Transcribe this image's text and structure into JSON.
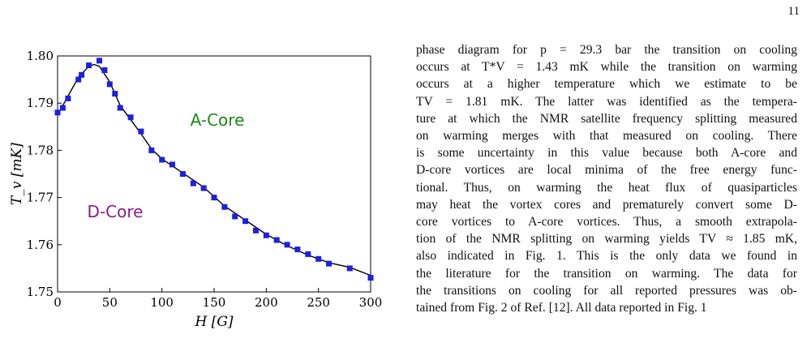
{
  "page": {
    "number": "11"
  },
  "chart_data": {
    "type": "line",
    "title": "",
    "xlabel": "H [G]",
    "ylabel": "T_v [mK]",
    "xlim": [
      0,
      300
    ],
    "ylim": [
      1.75,
      1.8
    ],
    "xticks": [
      "0",
      "50",
      "100",
      "150",
      "200",
      "250",
      "300"
    ],
    "yticks": [
      "1.75",
      "1.76",
      "1.77",
      "1.78",
      "1.79",
      "1.80"
    ],
    "grid": false,
    "annotations": [
      {
        "text": "A-Core",
        "color": "#1a8a1a"
      },
      {
        "text": "D-Core",
        "color": "#8b1a8b"
      }
    ],
    "series": [
      {
        "marker": "square",
        "color": "#1f1fe0",
        "x": [
          0,
          5,
          10,
          20,
          23,
          30,
          40,
          45,
          50,
          55,
          60,
          70,
          80,
          90,
          100,
          110,
          120,
          130,
          140,
          150,
          160,
          170,
          180,
          190,
          200,
          210,
          220,
          230,
          240,
          250,
          260,
          280,
          300
        ],
        "y": [
          1.788,
          1.789,
          1.791,
          1.795,
          1.796,
          1.798,
          1.799,
          1.797,
          1.794,
          1.792,
          1.789,
          1.787,
          1.784,
          1.78,
          1.778,
          1.777,
          1.775,
          1.773,
          1.772,
          1.77,
          1.768,
          1.766,
          1.765,
          1.763,
          1.762,
          1.761,
          1.76,
          1.759,
          1.758,
          1.757,
          1.756,
          1.755,
          1.753
        ]
      },
      {
        "marker": "none",
        "color": "#000000",
        "x": [
          0,
          10,
          20,
          30,
          35,
          40,
          50,
          60,
          70,
          80,
          90,
          100,
          120,
          140,
          160,
          180,
          200,
          220,
          240,
          260,
          280,
          300
        ],
        "y": [
          1.7875,
          1.7915,
          1.7955,
          1.7978,
          1.7982,
          1.7978,
          1.7945,
          1.7895,
          1.7865,
          1.7835,
          1.7803,
          1.7782,
          1.7752,
          1.7722,
          1.7682,
          1.7652,
          1.7622,
          1.7598,
          1.7578,
          1.7562,
          1.7552,
          1.7535
        ]
      }
    ]
  },
  "text": {
    "lines": [
      "phase diagram for p = 29.3 bar the transition on cooling",
      "occurs at T*V = 1.43 mK while the transition on warming",
      "occurs at a higher temperature which we estimate to be",
      "TV = 1.81 mK. The latter was identified as the tempera-",
      "ture at which the NMR satellite frequency splitting measured",
      "on warming merges with that measured on cooling. There",
      "is some uncertainty in this value because both A-core and",
      "D-core vortices are local minima of the free energy func-",
      "tional. Thus, on warming the heat flux of quasiparticles",
      "may heat the vortex cores and prematurely convert some D-",
      "core vortices to A-core vortices. Thus, a smooth extrapola-",
      "tion of the NMR splitting on warming yields TV ≈ 1.85 mK,",
      "also indicated in Fig. 1. This is the only data we found in",
      "the literature for the transition on warming. The data for",
      "the transitions on cooling for all reported pressures was ob-",
      "tained from Fig. 2 of Ref. [12]. All data reported in Fig. 1"
    ]
  }
}
